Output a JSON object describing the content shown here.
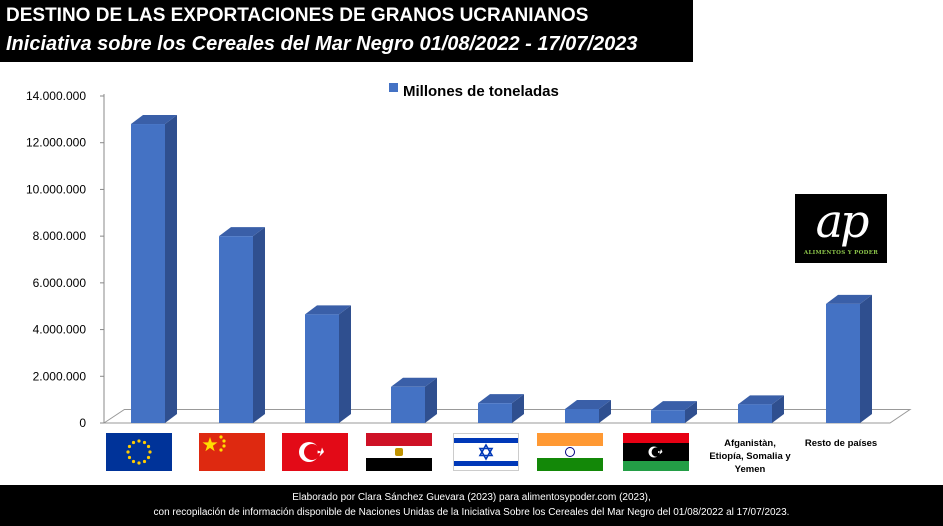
{
  "header": {
    "title": "DESTINO DE LAS EXPORTACIONES DE GRANOS UCRANIANOS",
    "subtitle": "Iniciativa sobre los Cereales del Mar Negro 01/08/2022 - 17/07/2023"
  },
  "chart_data": {
    "type": "bar",
    "categories": [
      "Unión Europea",
      "China",
      "Turquía",
      "Egipto",
      "Israel",
      "India",
      "Libia",
      "Afganistàn, Etiopía, Somalia y Yemen",
      "Resto de países"
    ],
    "category_labels_printed": [
      "",
      "",
      "",
      "",
      "",
      "",
      "",
      "Afganistàn, Etiopía, Somalia y Yemen",
      "Resto de países"
    ],
    "series": [
      {
        "name": "Millones de toneladas",
        "values": [
          12800000,
          8000000,
          4650000,
          1550000,
          850000,
          600000,
          550000,
          800000,
          5100000
        ]
      }
    ],
    "ylim": [
      0,
      14000000
    ],
    "yticks": [
      "0",
      "2.000.000",
      "4.000.000",
      "6.000.000",
      "8.000.000",
      "10.000.000",
      "12.000.000",
      "14.000.000"
    ],
    "legend_position": "top",
    "grid": false,
    "bar_color": "#4472c4",
    "bar_side_color": "#2f4f8f",
    "bar_top_color": "#3a5fa8"
  },
  "flags": [
    "eu-flag",
    "china-flag",
    "turkey-flag",
    "egypt-flag",
    "israel-flag",
    "india-flag",
    "libya-flag"
  ],
  "logo": {
    "mark": "ap",
    "subtitle": "ALIMENTOS Y PODER"
  },
  "footer": {
    "line1": "Elaborado por Clara Sánchez  Guevara (2023) para alimentosypoder.com  (2023),",
    "line2": "con recopilación de información  disponible de Naciones Unidas de la Iniciativa Sobre los Cereales del Mar Negro  del 01/08/2022 al 17/07/2023."
  }
}
